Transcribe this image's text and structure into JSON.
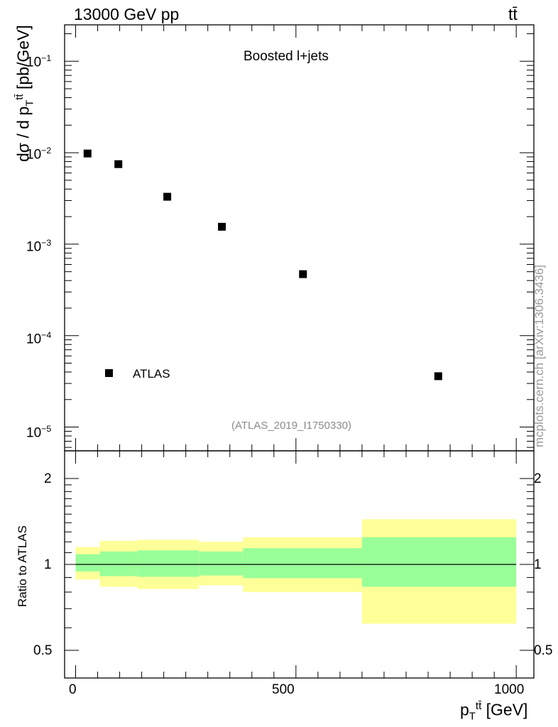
{
  "header": {
    "energy_label": "13000 GeV pp",
    "process_label": "tt̄",
    "side_note": "mcplots.cern.ch [arXiv:1306.3436]"
  },
  "main_panel": {
    "title": "Boosted l+jets",
    "ylabel": "dσ / d p",
    "ylabel_sub": "T",
    "ylabel_sup": "tt̄",
    "ylabel_unit": " [pb/GeV]",
    "analysis_id": "(ATLAS_2019_I1750330)",
    "legend_label": "ATLAS",
    "y_tick_labels": [
      "10",
      "10",
      "10",
      "10",
      "10"
    ],
    "y_tick_exponents": [
      "−1",
      "−2",
      "−3",
      "−4",
      "−5"
    ]
  },
  "ratio_panel": {
    "ylabel": "Ratio to ATLAS",
    "y_tick_labels": [
      "2",
      "1",
      "0.5"
    ]
  },
  "x_axis": {
    "label_main": "p",
    "label_sub": "T",
    "label_sup": "tt̄",
    "label_unit": " [GeV]",
    "tick_labels": [
      "0",
      "500",
      "1000"
    ]
  },
  "colors": {
    "marker": "#000000",
    "band_inner": "#99ff99",
    "band_outer": "#ffff99"
  },
  "chart_data": {
    "type": "scatter",
    "title": "Boosted l+jets",
    "xlabel": "p_T^{tt̄} [GeV]",
    "ylabel": "dσ / d p_T^{tt̄} [pb/GeV]",
    "x_range": [
      -25,
      1040
    ],
    "y_range": [
      5.5e-06,
      0.25
    ],
    "y_scale": "log",
    "series": [
      {
        "name": "ATLAS",
        "x": [
          27,
          97,
          208,
          332,
          516,
          823
        ],
        "y": [
          0.0098,
          0.0075,
          0.0033,
          0.00155,
          0.00047,
          3.6e-05
        ]
      }
    ],
    "ratio": {
      "ylabel": "Ratio to ATLAS",
      "y_range": [
        0.4,
        2.5
      ],
      "y_scale": "log",
      "bins": [
        {
          "lo": 0,
          "hi": 55,
          "inner": [
            0.945,
            1.085
          ],
          "outer": [
            0.885,
            1.15
          ]
        },
        {
          "lo": 55,
          "hi": 140,
          "inner": [
            0.91,
            1.11
          ],
          "outer": [
            0.835,
            1.21
          ]
        },
        {
          "lo": 140,
          "hi": 280,
          "inner": [
            0.905,
            1.12
          ],
          "outer": [
            0.82,
            1.22
          ]
        },
        {
          "lo": 280,
          "hi": 380,
          "inner": [
            0.915,
            1.11
          ],
          "outer": [
            0.845,
            1.2
          ]
        },
        {
          "lo": 380,
          "hi": 650,
          "inner": [
            0.895,
            1.14
          ],
          "outer": [
            0.8,
            1.245
          ]
        },
        {
          "lo": 650,
          "hi": 1000,
          "inner": [
            0.835,
            1.245
          ],
          "outer": [
            0.62,
            1.44
          ]
        }
      ]
    },
    "legend_position": "bottom-left",
    "grid": false
  }
}
